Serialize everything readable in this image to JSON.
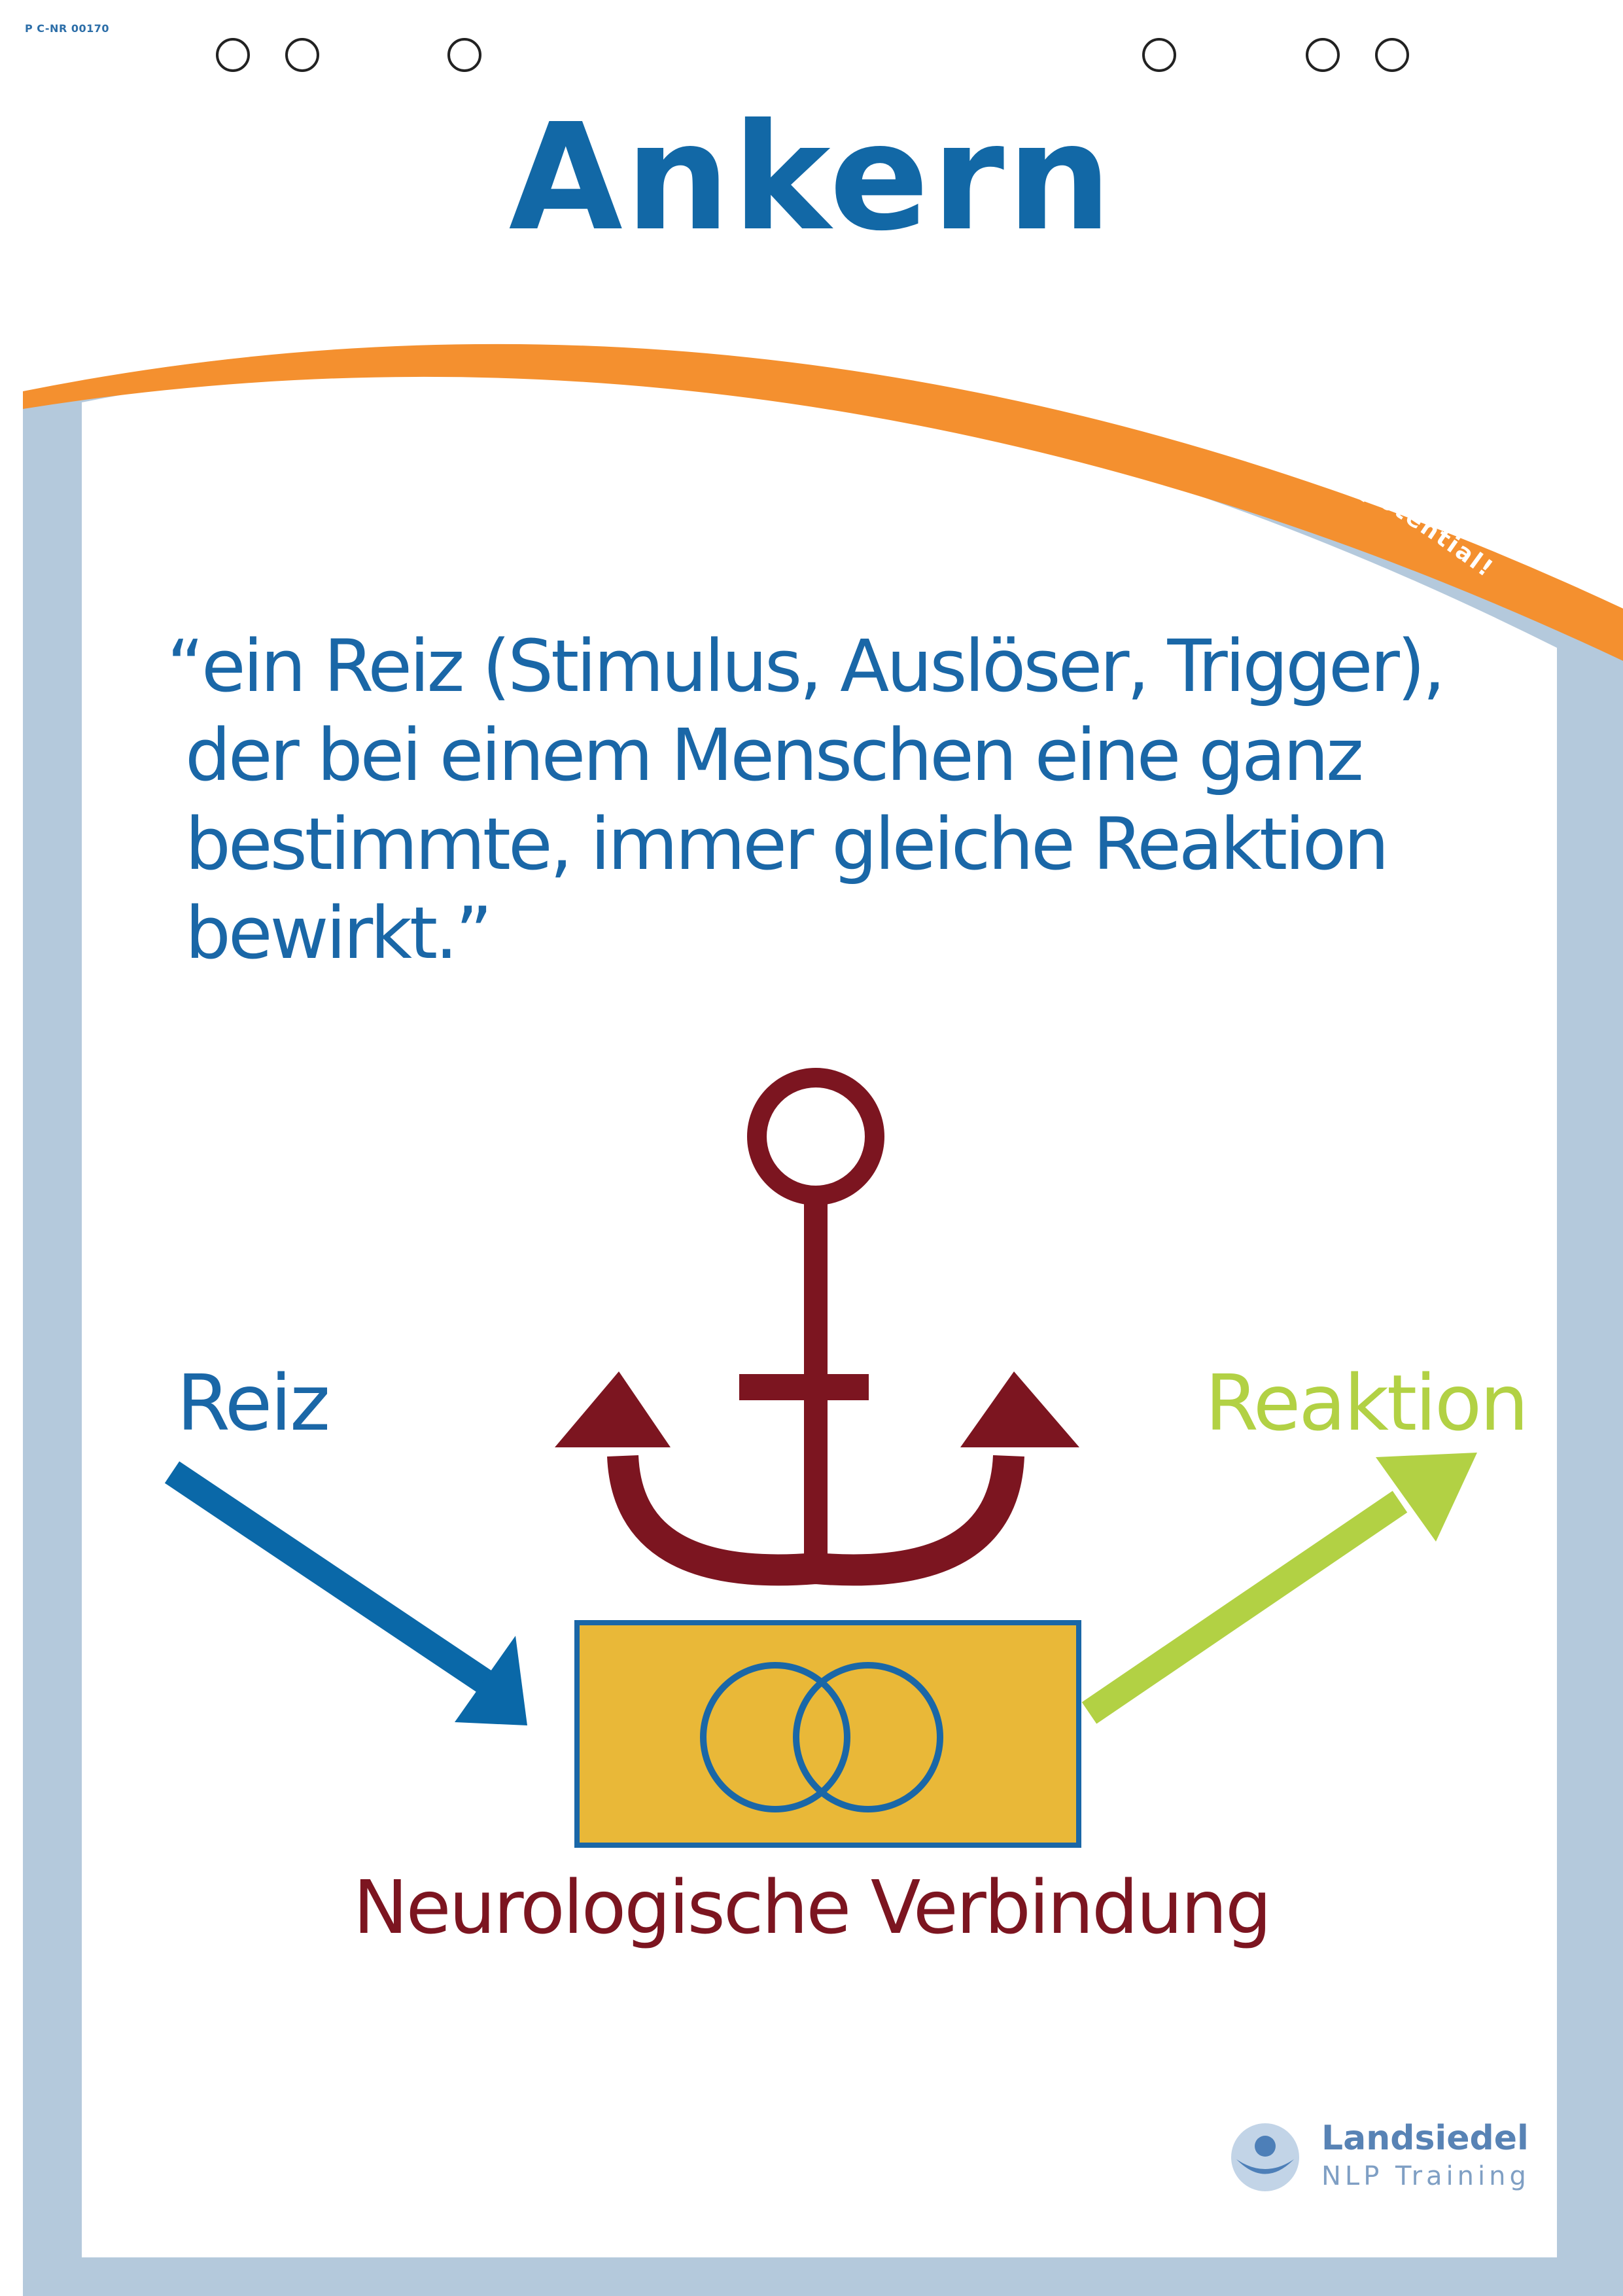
{
  "code": "P C-NR 00170",
  "title": "Ankern",
  "tagline": "... empower your potential!",
  "quote": {
    "lines": [
      "“ein Reiz (Stimulus, Auslöser, Trigger),",
      "der bei einem Menschen eine ganz",
      "bestimmte, immer gleiche Reaktion",
      "bewirkt.”"
    ]
  },
  "diagram": {
    "input_label": "Reiz",
    "output_label": "Reaktion",
    "center_label": "Neurologische Verbindung",
    "center_icon": "interlocking-rings-icon",
    "anchor_icon": "anchor-icon"
  },
  "brand": {
    "name": "Landsiedel",
    "subtitle": "NLP Training",
    "logo_icon": "landsiedel-logo-icon"
  },
  "colors": {
    "title_blue": "#1268a6",
    "orange_arc": "#f4902f",
    "frame_blue": "#b4c9dc",
    "anchor_red": "#7c1520",
    "arrow_blue": "#0a68a8",
    "arrow_green": "#b2d144",
    "box_yellow": "#e9b838"
  }
}
